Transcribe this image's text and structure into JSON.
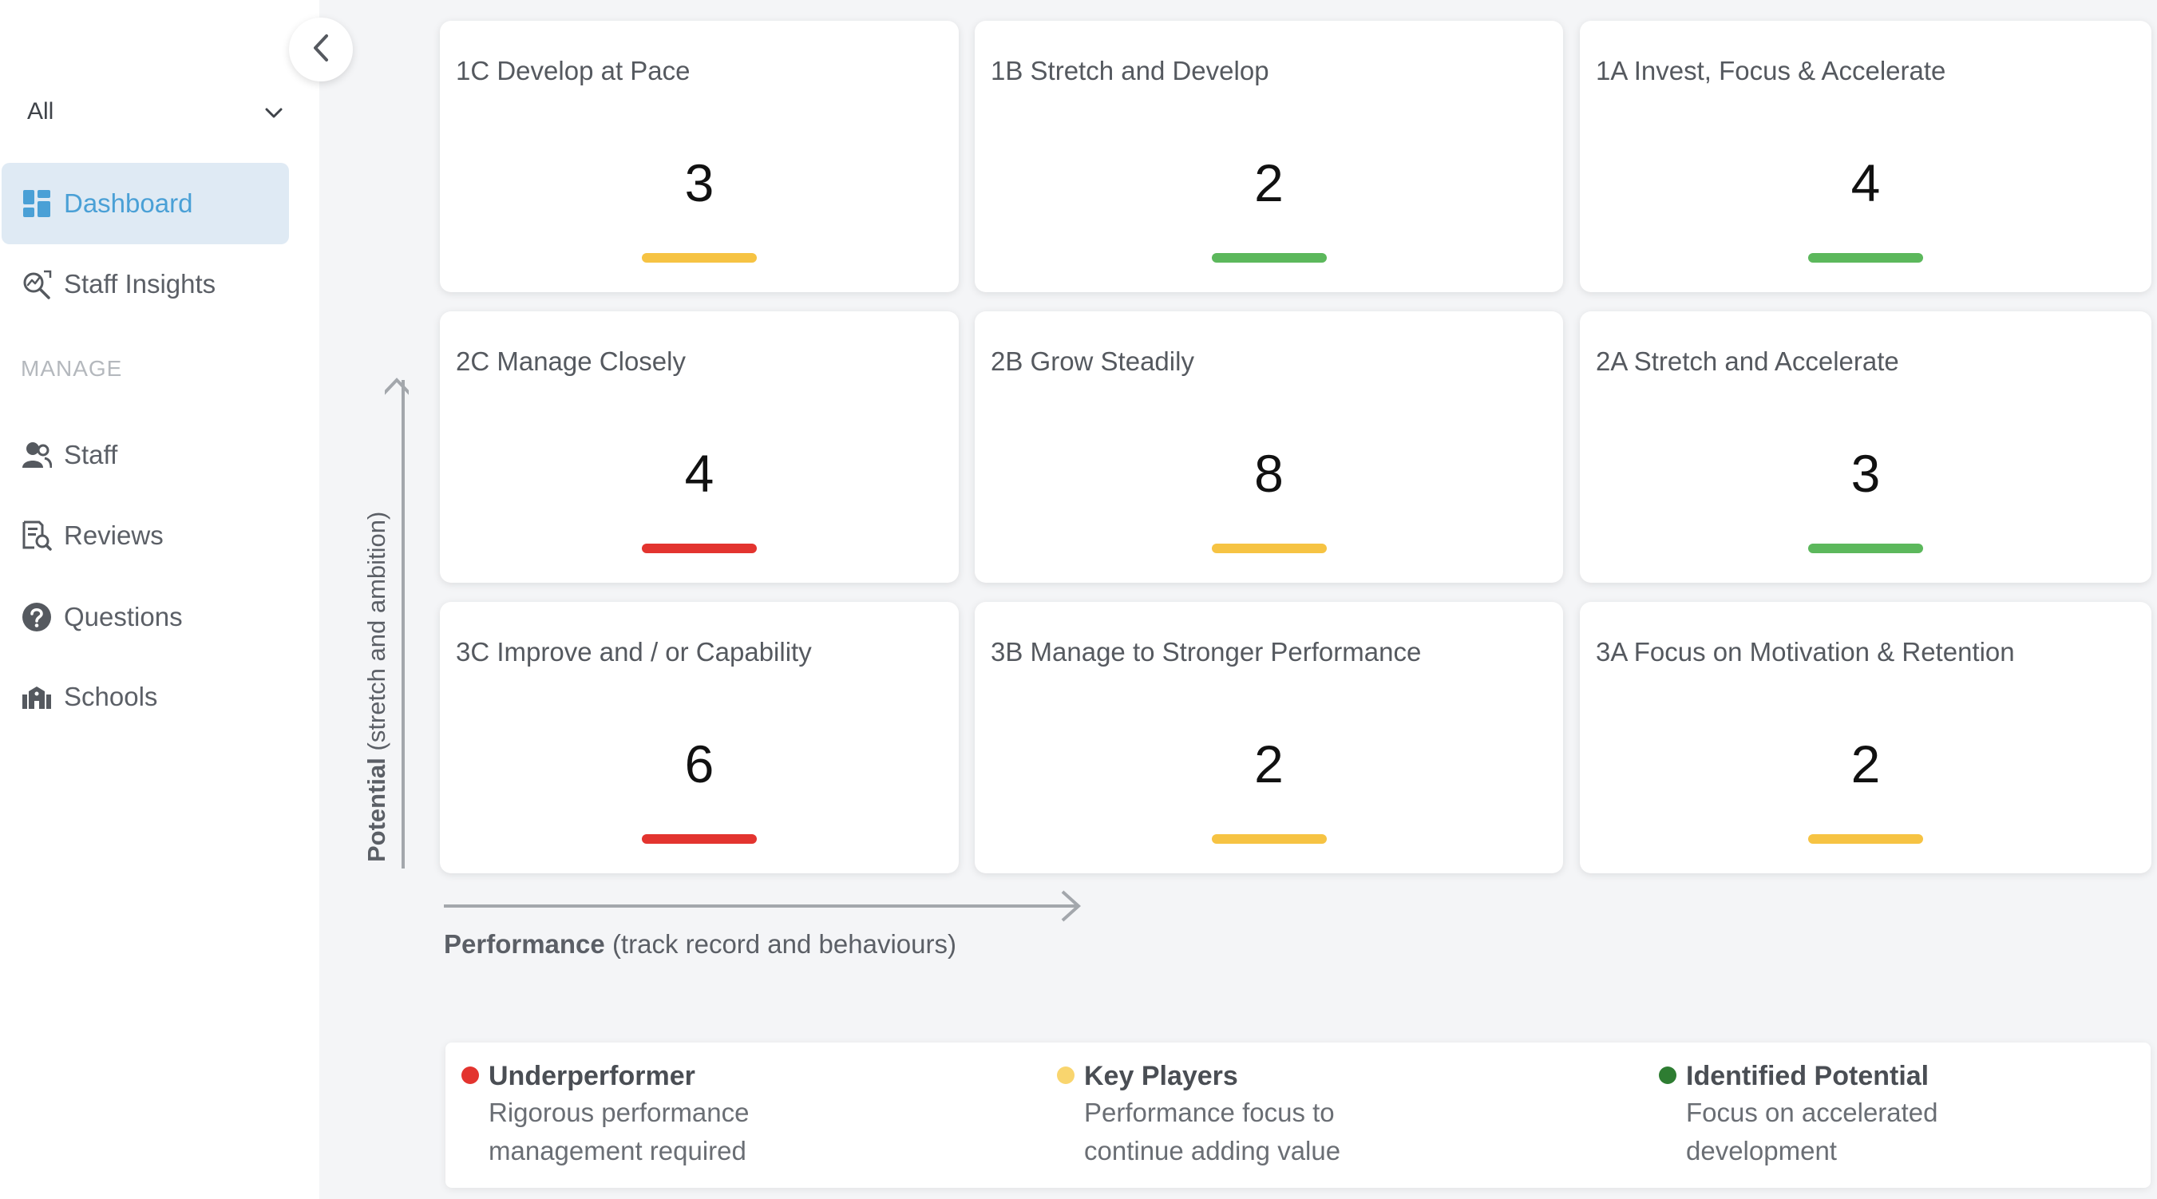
{
  "sidebar": {
    "scope_value": "All",
    "nav_primary": [
      {
        "label": "Dashboard",
        "icon": "dashboard-grid-icon",
        "active": true
      },
      {
        "label": "Staff Insights",
        "icon": "insights-chart-icon",
        "active": false
      }
    ],
    "section_label": "MANAGE",
    "nav_manage": [
      {
        "label": "Staff",
        "icon": "people-icon"
      },
      {
        "label": "Reviews",
        "icon": "document-search-icon"
      },
      {
        "label": "Questions",
        "icon": "question-circle-icon"
      },
      {
        "label": "Schools",
        "icon": "school-building-icon"
      }
    ]
  },
  "grid": {
    "tiles": [
      {
        "title": "1C Develop at Pace",
        "count": "3",
        "status": "key-players"
      },
      {
        "title": "1B Stretch and Develop",
        "count": "2",
        "status": "identified-potential"
      },
      {
        "title": "1A Invest, Focus & Accelerate",
        "count": "4",
        "status": "identified-potential"
      },
      {
        "title": "2C Manage Closely",
        "count": "4",
        "status": "underperformer"
      },
      {
        "title": "2B Grow Steadily",
        "count": "8",
        "status": "key-players"
      },
      {
        "title": "2A Stretch and Accelerate",
        "count": "3",
        "status": "identified-potential"
      },
      {
        "title": "3C Improve and / or Capability",
        "count": "6",
        "status": "underperformer"
      },
      {
        "title": "3B Manage to Stronger Performance",
        "count": "2",
        "status": "key-players"
      },
      {
        "title": "3A Focus on Motivation & Retention",
        "count": "2",
        "status": "key-players"
      }
    ]
  },
  "axes": {
    "y_strong": "Potential",
    "y_rest": "(stretch and ambition)",
    "x_strong": "Performance",
    "x_rest": "(track record and behaviours)"
  },
  "legend": [
    {
      "title": "Underperformer",
      "description": "Rigorous performance management required",
      "color": "#e3342f"
    },
    {
      "title": "Key Players",
      "description": "Performance focus to continue adding value",
      "color": "#f9d56e"
    },
    {
      "title": "Identified Potential",
      "description": "Focus on accelerated development",
      "color": "#2e7d32"
    }
  ],
  "colors": {
    "underperformer": "#e3342f",
    "key-players": "#f6c343",
    "identified-potential": "#5cb85c",
    "accent": "#4aa0d6"
  }
}
